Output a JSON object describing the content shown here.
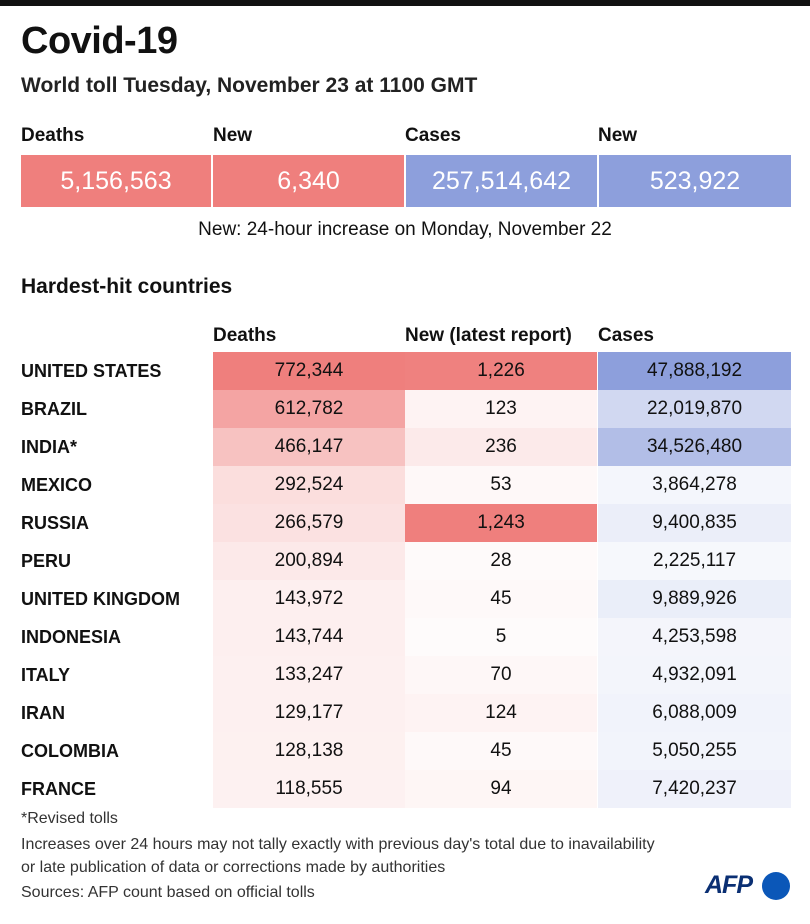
{
  "title": "Covid-19",
  "subtitle": "World toll Tuesday, November 23 at 1100 GMT",
  "summary": {
    "deaths_label": "Deaths",
    "deaths_value": "5,156,563",
    "new_deaths_label": "New",
    "new_deaths_value": "6,340",
    "cases_label": "Cases",
    "cases_value": "257,514,642",
    "new_cases_label": "New",
    "new_cases_value": "523,922",
    "note": "New: 24-hour increase on Monday, November 22"
  },
  "colors": {
    "death_accent": "#ef7f7d",
    "case_accent": "#8d9fdc",
    "background": "#ffffff"
  },
  "chart_data": {
    "type": "table",
    "title": "Hardest-hit countries",
    "columns": [
      "Deaths",
      "New (latest report)",
      "Cases"
    ],
    "rows": [
      {
        "country": "UNITED STATES",
        "deaths": 772344,
        "new": 1226,
        "cases": 47888192,
        "deaths_text": "772,344",
        "new_text": "1,226",
        "cases_text": "47,888,192"
      },
      {
        "country": "BRAZIL",
        "deaths": 612782,
        "new": 123,
        "cases": 22019870,
        "deaths_text": "612,782",
        "new_text": "123",
        "cases_text": "22,019,870"
      },
      {
        "country": "INDIA*",
        "deaths": 466147,
        "new": 236,
        "cases": 34526480,
        "deaths_text": "466,147",
        "new_text": "236",
        "cases_text": "34,526,480"
      },
      {
        "country": "MEXICO",
        "deaths": 292524,
        "new": 53,
        "cases": 3864278,
        "deaths_text": "292,524",
        "new_text": "53",
        "cases_text": "3,864,278"
      },
      {
        "country": "RUSSIA",
        "deaths": 266579,
        "new": 1243,
        "cases": 9400835,
        "deaths_text": "266,579",
        "new_text": "1,243",
        "cases_text": "9,400,835"
      },
      {
        "country": "PERU",
        "deaths": 200894,
        "new": 28,
        "cases": 2225117,
        "deaths_text": "200,894",
        "new_text": "28",
        "cases_text": "2,225,117"
      },
      {
        "country": "UNITED KINGDOM",
        "deaths": 143972,
        "new": 45,
        "cases": 9889926,
        "deaths_text": "143,972",
        "new_text": "45",
        "cases_text": "9,889,926"
      },
      {
        "country": "INDONESIA",
        "deaths": 143744,
        "new": 5,
        "cases": 4253598,
        "deaths_text": "143,744",
        "new_text": "5",
        "cases_text": "4,253,598"
      },
      {
        "country": "ITALY",
        "deaths": 133247,
        "new": 70,
        "cases": 4932091,
        "deaths_text": "133,247",
        "new_text": "70",
        "cases_text": "4,932,091"
      },
      {
        "country": "IRAN",
        "deaths": 129177,
        "new": 124,
        "cases": 6088009,
        "deaths_text": "129,177",
        "new_text": "124",
        "cases_text": "6,088,009"
      },
      {
        "country": "COLOMBIA",
        "deaths": 128138,
        "new": 45,
        "cases": 5050255,
        "deaths_text": "128,138",
        "new_text": "45",
        "cases_text": "5,050,255"
      },
      {
        "country": "FRANCE",
        "deaths": 118555,
        "new": 94,
        "cases": 7420237,
        "deaths_text": "118,555",
        "new_text": "94",
        "cases_text": "7,420,237"
      }
    ]
  },
  "footer": {
    "revised": "*Revised tolls",
    "disclaimer_1": "Increases over 24 hours may not tally exactly with previous day's total due to inavailability",
    "disclaimer_2": "or late publication of data or corrections made by authorities",
    "sources": "Sources: AFP count based on official tolls",
    "logo": "AFP"
  }
}
